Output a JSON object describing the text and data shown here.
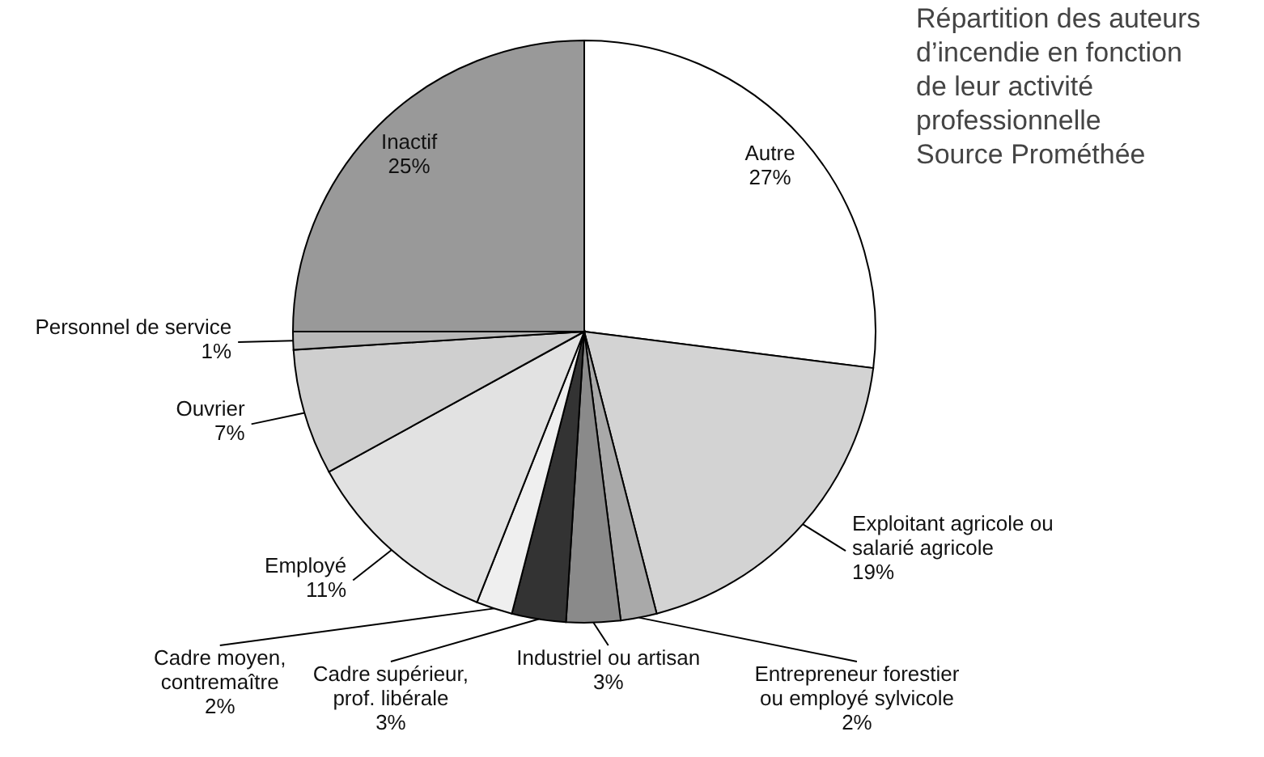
{
  "chart_data": {
    "type": "pie",
    "title": "Répartition des auteurs d’incendie en fonction de leur activité professionnelle",
    "subtitle": "Source Prométhée",
    "categories": [
      "Autre",
      "Exploitant agricole ou salarié agricole",
      "Entrepreneur forestier ou employé sylvicole",
      "Industriel ou artisan",
      "Cadre supérieur, prof. libérale",
      "Cadre moyen, contremaître",
      "Employé",
      "Ouvrier",
      "Personnel de service",
      "Inactif"
    ],
    "values": [
      27,
      19,
      2,
      3,
      3,
      2,
      11,
      7,
      1,
      25
    ],
    "value_labels": [
      "27%",
      "19%",
      "2%",
      "3%",
      "3%",
      "2%",
      "11%",
      "7%",
      "1%",
      "25%"
    ],
    "colors": [
      "#ffffff",
      "#d3d3d3",
      "#a9a9a9",
      "#8a8a8a",
      "#333333",
      "#efefef",
      "#e2e2e2",
      "#cfcfcf",
      "#b8b8b8",
      "#999999"
    ]
  }
}
